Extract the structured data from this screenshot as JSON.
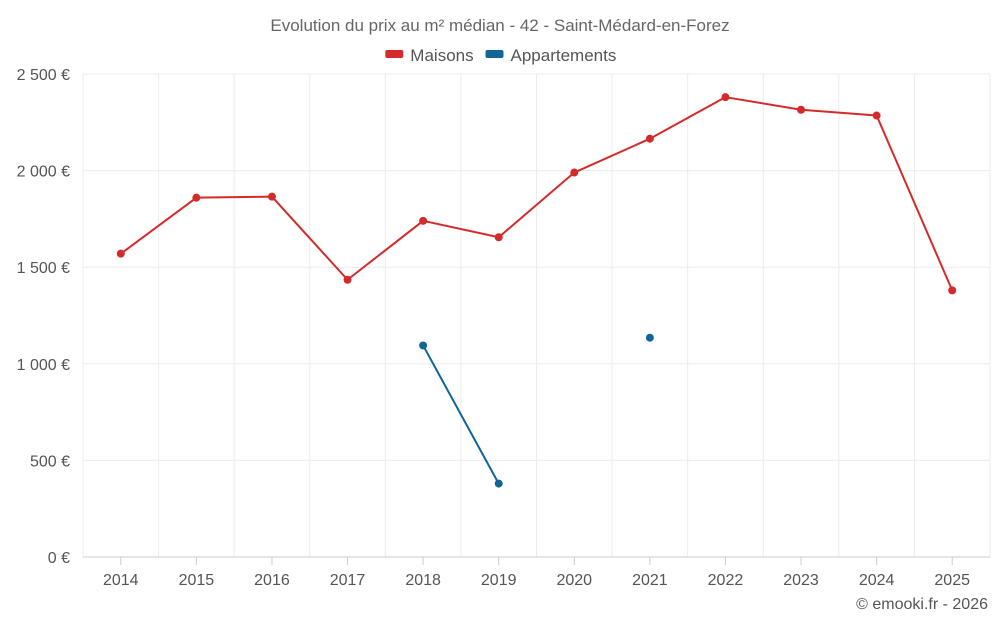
{
  "chart_data": {
    "type": "line",
    "title": "Evolution du prix au m² médian - 42 - Saint-Médard-en-Forez",
    "categories": [
      "2014",
      "2015",
      "2016",
      "2017",
      "2018",
      "2019",
      "2020",
      "2021",
      "2022",
      "2023",
      "2024",
      "2025"
    ],
    "ylim": [
      0,
      2500
    ],
    "yticks": [
      0,
      500,
      1000,
      1500,
      2000,
      2500
    ],
    "ytick_labels": [
      "0 €",
      "500 €",
      "1 000 €",
      "1 500 €",
      "2 000 €",
      "2 500 €"
    ],
    "grid": true,
    "legend_position": "top-center",
    "series": [
      {
        "name": "Maisons",
        "color": "#d42a2a",
        "values": [
          1570,
          1860,
          1865,
          1435,
          1740,
          1655,
          1990,
          2165,
          2380,
          2315,
          2285,
          1380
        ]
      },
      {
        "name": "Appartements",
        "color": "#0f6697",
        "values": [
          null,
          null,
          null,
          null,
          1095,
          380,
          null,
          1135,
          null,
          null,
          null,
          null
        ]
      }
    ],
    "credit": "© emooki.fr - 2026"
  }
}
